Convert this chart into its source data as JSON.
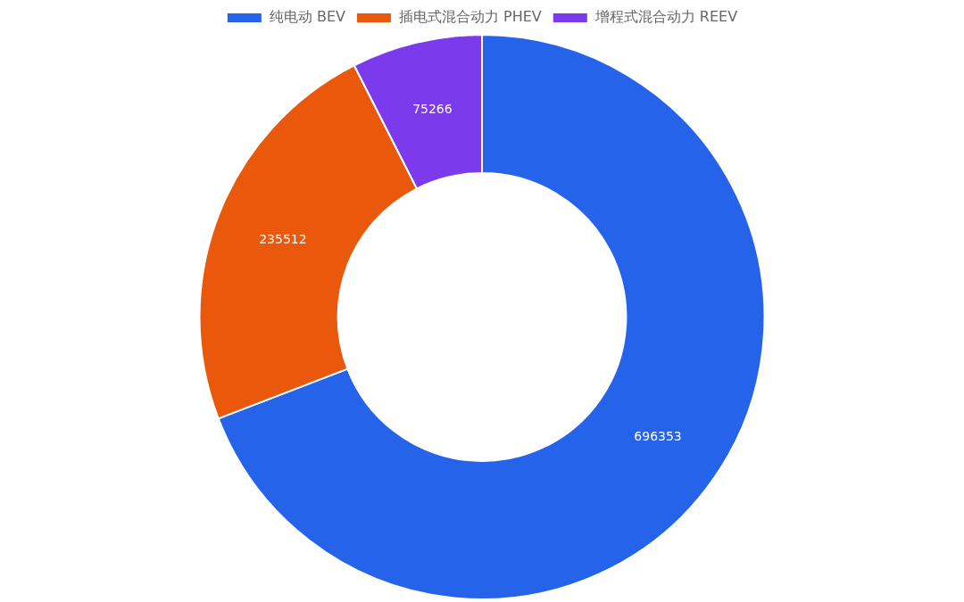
{
  "chart_data": {
    "type": "donut",
    "categories": [
      "纯电动 BEV",
      "插电式混合动力 PHEV",
      "增程式混合动力 REEV"
    ],
    "values": [
      696353,
      235512,
      75266
    ],
    "colors": [
      "#2563eb",
      "#ea580c",
      "#7c3aed"
    ],
    "legend": "top",
    "data_labels": true
  }
}
